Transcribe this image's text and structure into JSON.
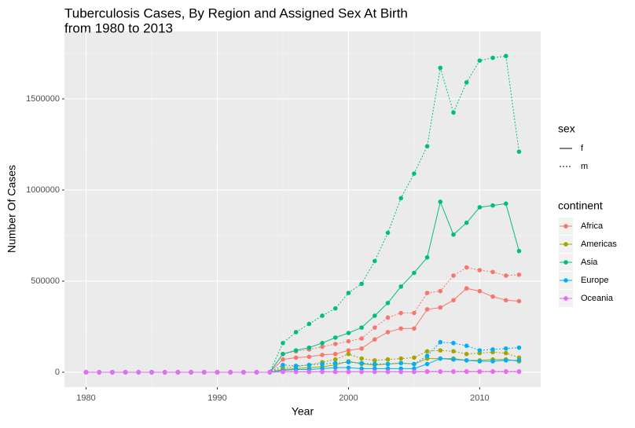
{
  "chart_data": {
    "type": "line",
    "title": [
      "Tuberculosis Cases, By Region and Assigned Sex At Birth",
      "from 1980 to 2013"
    ],
    "x_label": "Year",
    "y_label": "Number Of Cases",
    "xlim": [
      1978.35,
      2014.65
    ],
    "xticks": [
      1980,
      1990,
      2000,
      2010
    ],
    "ylim": [
      -82000,
      1870000
    ],
    "yticks": [
      0,
      500000,
      1000000,
      1500000
    ],
    "grid": true,
    "legends": [
      {
        "title": "sex",
        "items": [
          {
            "label": "f",
            "dash": "solid"
          },
          {
            "label": "m",
            "dash": "dotted"
          }
        ]
      },
      {
        "title": "continent",
        "items": [
          {
            "label": "Africa",
            "color": "#F8766D"
          },
          {
            "label": "Americas",
            "color": "#A3A500"
          },
          {
            "label": "Asia",
            "color": "#00BF7D"
          },
          {
            "label": "Europe",
            "color": "#00B0F6"
          },
          {
            "label": "Oceania",
            "color": "#E76BF3"
          }
        ]
      }
    ],
    "x": [
      1980,
      1981,
      1982,
      1983,
      1984,
      1985,
      1986,
      1987,
      1988,
      1989,
      1990,
      1991,
      1992,
      1993,
      1994,
      1995,
      1996,
      1997,
      1998,
      1999,
      2000,
      2001,
      2002,
      2003,
      2004,
      2005,
      2006,
      2007,
      2008,
      2009,
      2010,
      2011,
      2012,
      2013
    ],
    "series": [
      {
        "continent": "Africa",
        "sex": "f",
        "values": [
          0,
          0,
          0,
          0,
          0,
          0,
          0,
          0,
          0,
          0,
          0,
          0,
          0,
          0,
          0,
          70000,
          80000,
          85000,
          95000,
          100000,
          120000,
          130000,
          180000,
          220000,
          240000,
          240000,
          345000,
          355000,
          395000,
          460000,
          445000,
          415000,
          395000,
          390000
        ]
      },
      {
        "continent": "Africa",
        "sex": "m",
        "values": [
          0,
          0,
          0,
          0,
          0,
          0,
          0,
          0,
          0,
          0,
          0,
          0,
          0,
          0,
          0,
          100000,
          115000,
          125000,
          140000,
          155000,
          170000,
          185000,
          245000,
          300000,
          325000,
          325000,
          435000,
          445000,
          530000,
          575000,
          560000,
          550000,
          530000,
          535000
        ]
      },
      {
        "continent": "Americas",
        "sex": "f",
        "values": [
          0,
          0,
          0,
          0,
          0,
          0,
          0,
          0,
          0,
          0,
          0,
          0,
          0,
          0,
          0,
          15000,
          20000,
          25000,
          30000,
          40000,
          60000,
          45000,
          40000,
          45000,
          50000,
          45000,
          75000,
          75000,
          75000,
          65000,
          65000,
          70000,
          70000,
          60000
        ]
      },
      {
        "continent": "Americas",
        "sex": "m",
        "values": [
          0,
          0,
          0,
          0,
          0,
          0,
          0,
          0,
          0,
          0,
          0,
          0,
          0,
          0,
          0,
          25000,
          30000,
          40000,
          55000,
          70000,
          100000,
          75000,
          65000,
          70000,
          75000,
          80000,
          115000,
          120000,
          115000,
          100000,
          105000,
          110000,
          105000,
          80000
        ]
      },
      {
        "continent": "Asia",
        "sex": "f",
        "values": [
          0,
          0,
          0,
          0,
          0,
          0,
          0,
          0,
          0,
          0,
          0,
          0,
          0,
          0,
          0,
          100000,
          120000,
          135000,
          160000,
          190000,
          215000,
          245000,
          310000,
          380000,
          470000,
          545000,
          630000,
          935000,
          755000,
          820000,
          905000,
          915000,
          925000,
          665000
        ]
      },
      {
        "continent": "Asia",
        "sex": "m",
        "values": [
          0,
          0,
          0,
          0,
          0,
          0,
          0,
          0,
          0,
          0,
          0,
          0,
          0,
          0,
          0,
          160000,
          220000,
          265000,
          310000,
          350000,
          435000,
          485000,
          610000,
          765000,
          955000,
          1090000,
          1240000,
          1670000,
          1425000,
          1590000,
          1710000,
          1725000,
          1735000,
          1210000
        ]
      },
      {
        "continent": "Europe",
        "sex": "f",
        "values": [
          0,
          0,
          0,
          0,
          0,
          0,
          0,
          0,
          0,
          0,
          0,
          0,
          0,
          0,
          0,
          10000,
          15000,
          15000,
          20000,
          25000,
          25000,
          20000,
          20000,
          20000,
          20000,
          20000,
          45000,
          75000,
          70000,
          65000,
          60000,
          60000,
          65000,
          65000
        ]
      },
      {
        "continent": "Europe",
        "sex": "m",
        "values": [
          0,
          0,
          0,
          0,
          0,
          0,
          0,
          0,
          0,
          0,
          0,
          0,
          0,
          0,
          0,
          40000,
          35000,
          40000,
          45000,
          50000,
          55000,
          50000,
          45000,
          45000,
          50000,
          45000,
          90000,
          165000,
          160000,
          145000,
          120000,
          125000,
          130000,
          135000
        ]
      },
      {
        "continent": "Oceania",
        "sex": "f",
        "values": [
          0,
          0,
          0,
          0,
          0,
          0,
          0,
          0,
          0,
          0,
          0,
          0,
          0,
          0,
          0,
          1500,
          1500,
          1500,
          1500,
          1500,
          1500,
          1500,
          1500,
          1500,
          1500,
          1500,
          2500,
          2500,
          2500,
          2500,
          2500,
          2500,
          2500,
          2500
        ]
      },
      {
        "continent": "Oceania",
        "sex": "m",
        "values": [
          0,
          0,
          0,
          0,
          0,
          0,
          0,
          0,
          0,
          0,
          0,
          0,
          0,
          0,
          0,
          3000,
          3000,
          3000,
          3000,
          3000,
          3000,
          3000,
          3000,
          3000,
          3000,
          3000,
          5000,
          5000,
          5000,
          5000,
          5000,
          5000,
          5000,
          5000
        ]
      }
    ]
  }
}
